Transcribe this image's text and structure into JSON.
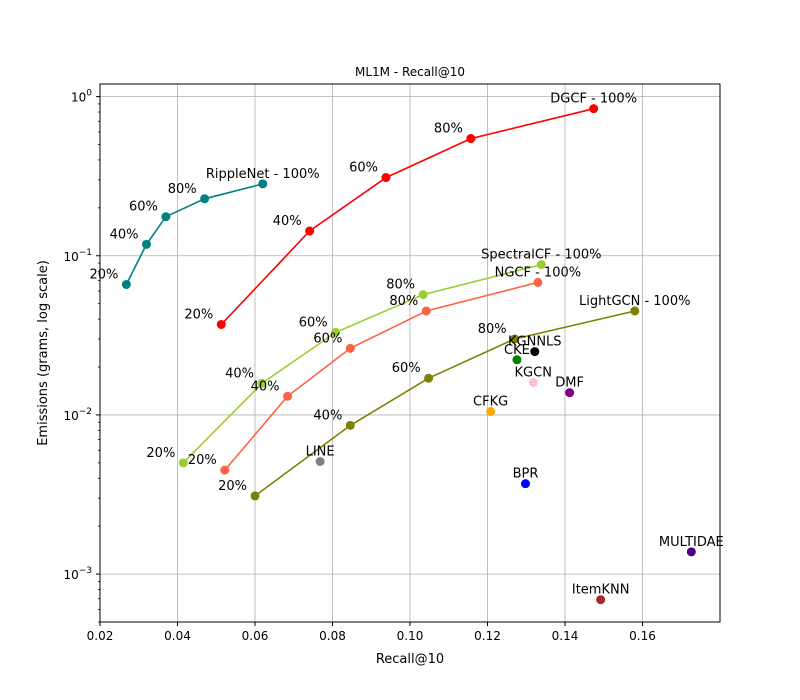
{
  "chart_data": {
    "type": "scatter",
    "title": "ML1M - Recall@10",
    "xlabel": "Recall@10",
    "ylabel": "Emissions (grams, log scale)",
    "xlim": [
      0.02,
      0.18
    ],
    "ylim": [
      0.0005,
      1.2
    ],
    "yscale": "log",
    "grid": true,
    "xticks": [
      {
        "value": 0.02,
        "label": "0.02"
      },
      {
        "value": 0.04,
        "label": "0.04"
      },
      {
        "value": 0.06,
        "label": "0.06"
      },
      {
        "value": 0.08,
        "label": "0.08"
      },
      {
        "value": 0.1,
        "label": "0.10"
      },
      {
        "value": 0.12,
        "label": "0.12"
      },
      {
        "value": 0.14,
        "label": "0.14"
      },
      {
        "value": 0.16,
        "label": "0.16"
      }
    ],
    "yticks": [
      {
        "value": 0.001,
        "base": "10",
        "exp": "−3"
      },
      {
        "value": 0.01,
        "base": "10",
        "exp": "−2"
      },
      {
        "value": 0.1,
        "base": "10",
        "exp": "−1"
      },
      {
        "value": 1,
        "base": "10",
        "exp": "0"
      }
    ],
    "series": [
      {
        "name": "RippleNet",
        "color": "#008080",
        "points": [
          {
            "x": 0.0268,
            "y": 0.066,
            "label": "20%"
          },
          {
            "x": 0.032,
            "y": 0.118,
            "label": "40%"
          },
          {
            "x": 0.037,
            "y": 0.176,
            "label": "60%"
          },
          {
            "x": 0.047,
            "y": 0.228,
            "label": "80%"
          },
          {
            "x": 0.062,
            "y": 0.283,
            "label": "RippleNet - 100%"
          }
        ]
      },
      {
        "name": "DGCF",
        "color": "#ff0000",
        "points": [
          {
            "x": 0.0513,
            "y": 0.037,
            "label": "20%"
          },
          {
            "x": 0.0741,
            "y": 0.143,
            "label": "40%"
          },
          {
            "x": 0.0938,
            "y": 0.31,
            "label": "60%"
          },
          {
            "x": 0.1157,
            "y": 0.545,
            "label": "80%"
          },
          {
            "x": 0.1474,
            "y": 0.84,
            "label": "DGCF - 100%"
          }
        ]
      },
      {
        "name": "SpectralCF",
        "color": "#9acd32",
        "points": [
          {
            "x": 0.0415,
            "y": 0.005,
            "label": "20%"
          },
          {
            "x": 0.0618,
            "y": 0.0158,
            "label": "40%"
          },
          {
            "x": 0.0808,
            "y": 0.033,
            "label": "60%"
          },
          {
            "x": 0.1034,
            "y": 0.057,
            "label": "80%"
          },
          {
            "x": 0.1339,
            "y": 0.088,
            "label": "SpectralCF - 100%"
          }
        ]
      },
      {
        "name": "NGCF",
        "color": "#ff6347",
        "points": [
          {
            "x": 0.0522,
            "y": 0.0045,
            "label": "20%"
          },
          {
            "x": 0.0684,
            "y": 0.0131,
            "label": "40%"
          },
          {
            "x": 0.0846,
            "y": 0.0262,
            "label": "60%"
          },
          {
            "x": 0.1042,
            "y": 0.045,
            "label": "80%"
          },
          {
            "x": 0.133,
            "y": 0.068,
            "label": "NGCF - 100%"
          }
        ]
      },
      {
        "name": "LightGCN",
        "color": "#808000",
        "points": [
          {
            "x": 0.06,
            "y": 0.0031,
            "label": "20%"
          },
          {
            "x": 0.0846,
            "y": 0.0086,
            "label": "40%"
          },
          {
            "x": 0.1048,
            "y": 0.017,
            "label": "60%"
          },
          {
            "x": 0.127,
            "y": 0.03,
            "label": "80%"
          },
          {
            "x": 0.158,
            "y": 0.045,
            "label": "LightGCN - 100%"
          }
        ]
      }
    ],
    "singles": [
      {
        "name": "KGNNLS",
        "x": 0.1322,
        "y": 0.025,
        "color": "#000000"
      },
      {
        "name": "CKE",
        "x": 0.1276,
        "y": 0.0222,
        "color": "#008000"
      },
      {
        "name": "KGCN",
        "x": 0.1318,
        "y": 0.016,
        "color": "#ffc0cb"
      },
      {
        "name": "DMF",
        "x": 0.1412,
        "y": 0.0138,
        "color": "#800080"
      },
      {
        "name": "CFKG",
        "x": 0.1208,
        "y": 0.0105,
        "color": "#ffa500"
      },
      {
        "name": "LINE",
        "x": 0.0768,
        "y": 0.0051,
        "color": "#808080"
      },
      {
        "name": "BPR",
        "x": 0.1298,
        "y": 0.0037,
        "color": "#0000ff"
      },
      {
        "name": "MULTIDAE",
        "x": 0.1726,
        "y": 0.00138,
        "color": "#4b0082"
      },
      {
        "name": "ItemKNN",
        "x": 0.1492,
        "y": 0.00069,
        "color": "#a52a2a"
      }
    ]
  }
}
